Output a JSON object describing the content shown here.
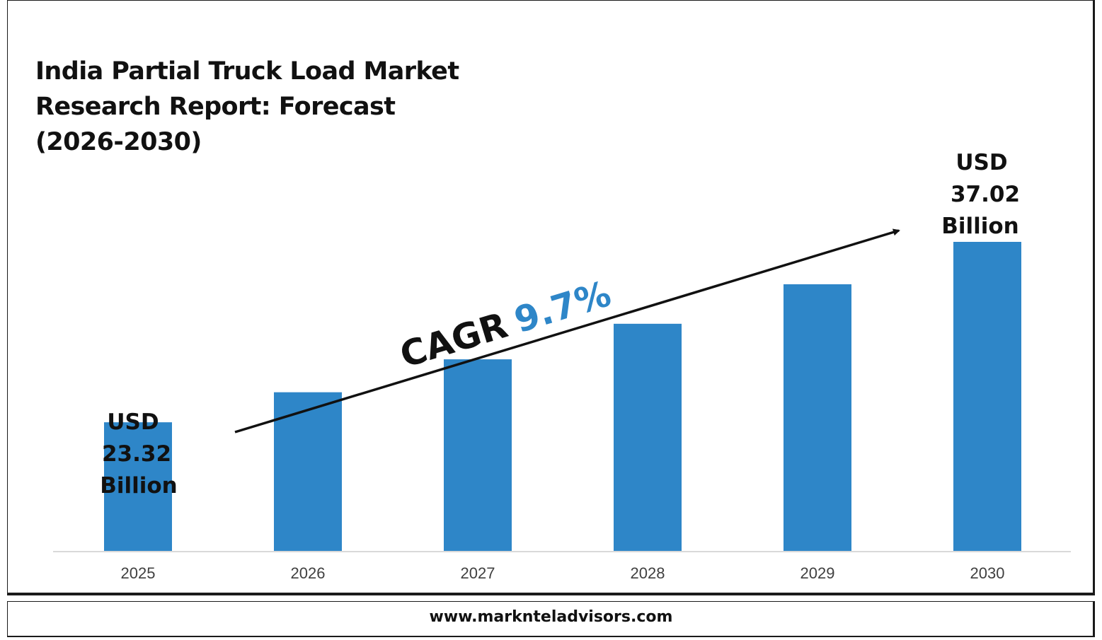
{
  "title_lines": [
    "India Partial Truck Load Market",
    "Research Report: Forecast",
    "(2026-2030)"
  ],
  "footer": {
    "url": "www.marknteladvisors.com"
  },
  "colors": {
    "bar": "#2e86c8",
    "cagr_value": "#2e86c8",
    "text": "#111111"
  },
  "chart_data": {
    "type": "bar",
    "title": "India Partial Truck Load Market Research Report: Forecast (2026-2030)",
    "categories": [
      "2025",
      "2026",
      "2027",
      "2028",
      "2029",
      "2030"
    ],
    "series": [
      {
        "values": [
          23.32,
          25.6,
          28.1,
          30.8,
          33.8,
          37.02
        ]
      }
    ],
    "unit": "USD Billion",
    "ylim": [
      13.5,
      37.02
    ],
    "grid": false,
    "annotations": {
      "first": [
        "USD",
        "23.32",
        "Billion"
      ],
      "last": [
        "USD",
        "37.02",
        "Billion"
      ],
      "cagr_label": "CAGR",
      "cagr_value": "9.7%"
    }
  }
}
